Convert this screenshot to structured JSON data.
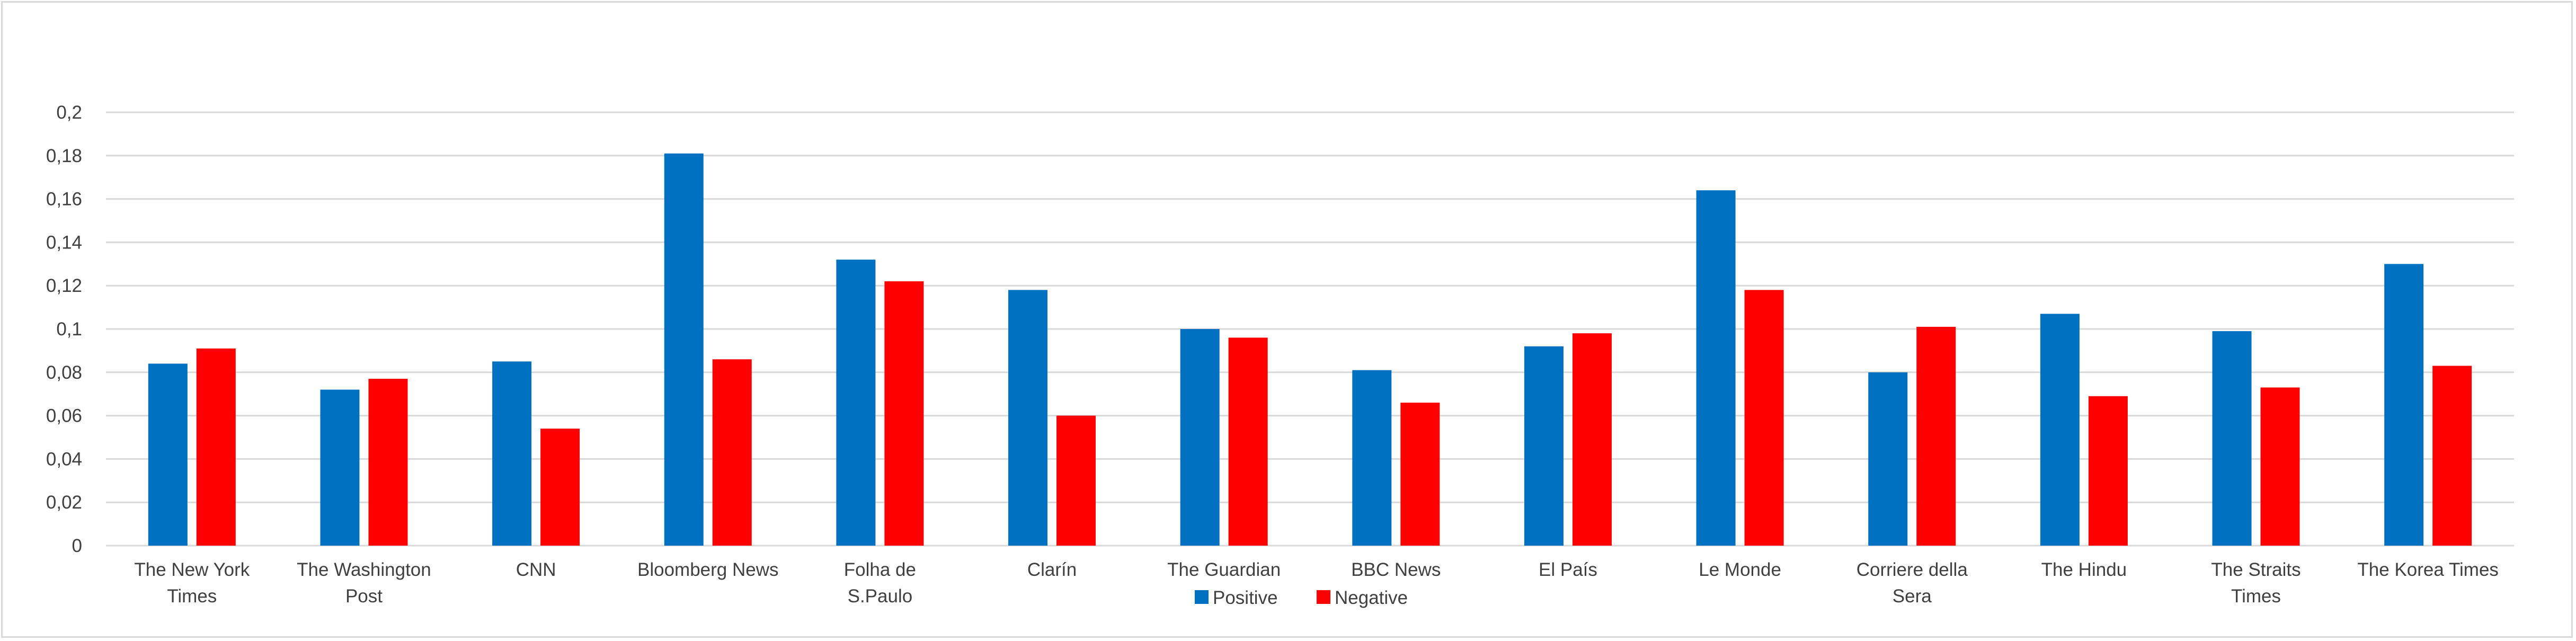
{
  "chart_data": {
    "type": "bar",
    "title": "",
    "xlabel": "",
    "ylabel": "",
    "ylim": [
      0,
      0.2
    ],
    "yticks": [
      "0",
      "0,02",
      "0,04",
      "0,06",
      "0,08",
      "0,1",
      "0,12",
      "0,14",
      "0,16",
      "0,18",
      "0,2"
    ],
    "grid": true,
    "legend_position": "bottom",
    "categories": [
      "The New York Times",
      "The Washington Post",
      "CNN",
      "Bloomberg News",
      "Folha de S.Paulo",
      "Clarín",
      "The Guardian",
      "BBC News",
      "El País",
      "Le Monde",
      "Corriere della Sera",
      "The Hindu",
      "The Straits Times",
      "The Korea Times"
    ],
    "series": [
      {
        "name": "Positive",
        "color": "#0070c0",
        "values": [
          0.084,
          0.072,
          0.085,
          0.181,
          0.132,
          0.118,
          0.1,
          0.081,
          0.092,
          0.164,
          0.08,
          0.107,
          0.099,
          0.13
        ]
      },
      {
        "name": "Negative",
        "color": "#ff0000",
        "values": [
          0.091,
          0.077,
          0.054,
          0.086,
          0.122,
          0.06,
          0.096,
          0.066,
          0.098,
          0.118,
          0.101,
          0.069,
          0.073,
          0.083
        ]
      }
    ]
  }
}
